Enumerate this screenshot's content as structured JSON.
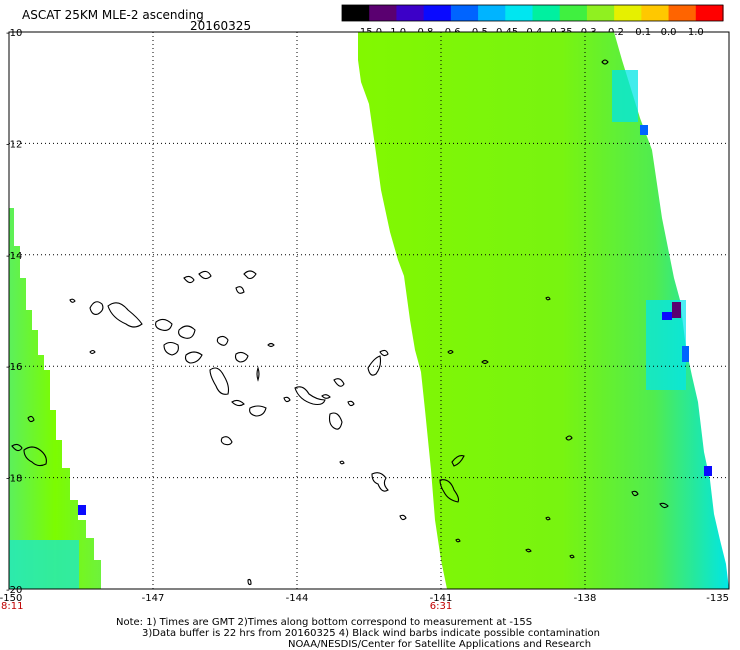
{
  "header": {
    "title": "ASCAT 25KM MLE-2 ascending",
    "date": "20160325"
  },
  "colorbar": {
    "labels": [
      "-15.0",
      "-1.0",
      "-0.8",
      "-0.6",
      "-0.5",
      "-0.45",
      "-0.4",
      "-0.35",
      "-0.3",
      "-0.2",
      "-0.1",
      "0.0",
      "1.0"
    ],
    "colors": [
      "#000000",
      "#5a0070",
      "#3c00c8",
      "#0a0aff",
      "#0064ff",
      "#00b4ff",
      "#00e6f0",
      "#00f0a0",
      "#40f040",
      "#90f020",
      "#e6f000",
      "#ffc800",
      "#ff6400",
      "#ff0000"
    ]
  },
  "footer": {
    "line1": "Note: 1) Times are GMT 2)Times along bottom correspond to measurement at -15S",
    "line2": "3)Data buffer is 22 hrs from 20160325 4) Black wind barbs indicate possible contamination",
    "line3": "NOAA/NESDIS/Center for Satellite Applications and Research"
  },
  "chart_data": {
    "type": "heatmap",
    "title": "ASCAT 25KM MLE-2 ascending",
    "date": "20160325",
    "x_ticks": [
      "-150",
      "-147",
      "-144",
      "-141",
      "-138",
      "-135"
    ],
    "y_ticks": [
      "-10",
      "-12",
      "-14",
      "-16",
      "-18",
      "-20"
    ],
    "xlim": [
      -150,
      -135
    ],
    "ylim": [
      -20,
      -10
    ],
    "grid": true,
    "times": [
      {
        "lon": -150,
        "label": "8:11",
        "color": "#c00000"
      },
      {
        "lon": -141,
        "label": "6:31",
        "color": "#c00000"
      }
    ],
    "swaths": [
      {
        "name": "western swath",
        "dominant_value": -0.3,
        "dominant_color": "#7cfc00",
        "edge_color": "#00e6a0",
        "lon_range": [
          -150,
          -148.9
        ],
        "lat_range": [
          -20,
          -13.5
        ],
        "min_value_spots": [
          {
            "lon": -148.8,
            "lat": -18.8,
            "color": "#0a0aff"
          }
        ]
      },
      {
        "name": "eastern swath",
        "dominant_value": -0.3,
        "dominant_color": "#7cfc00",
        "edge_color": "#00e6f0",
        "lon_range": [
          -142.5,
          -135
        ],
        "lat_range": [
          -20,
          -10
        ],
        "min_value_spots": [
          {
            "lon": -135.6,
            "lat": -15.2,
            "color": "#5a0070"
          },
          {
            "lon": -135.5,
            "lat": -17.9,
            "color": "#0a0aff"
          },
          {
            "lon": -135.9,
            "lat": -11.7,
            "color": "#0064ff"
          }
        ]
      }
    ]
  }
}
